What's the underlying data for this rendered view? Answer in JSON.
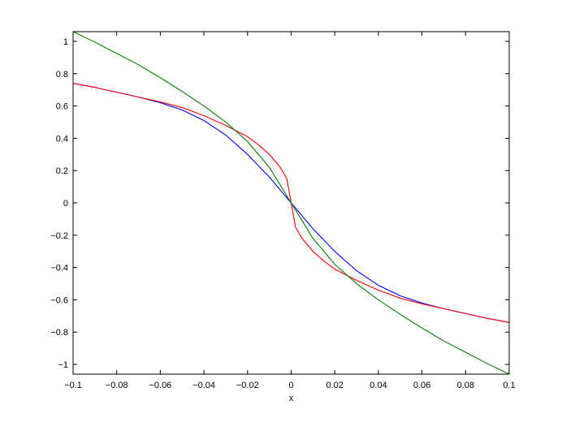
{
  "chart_data": {
    "type": "line",
    "title": "",
    "xlabel": "x",
    "ylabel": "",
    "xlim": [
      -0.1,
      0.1
    ],
    "ylim": [
      -1.06,
      1.06
    ],
    "grid": false,
    "legend": "none",
    "x_ticks": [
      -0.1,
      -0.08,
      -0.06,
      -0.04,
      -0.02,
      0,
      0.02,
      0.04,
      0.06,
      0.08,
      0.1
    ],
    "x_tick_labels": [
      "−0.1",
      "−0.08",
      "−0.06",
      "−0.04",
      "−0.02",
      "0",
      "0.02",
      "0.04",
      "0.06",
      "0.08",
      "0.1"
    ],
    "y_ticks": [
      1,
      0.8,
      0.6,
      0.4,
      0.2,
      0,
      -0.2,
      -0.4,
      -0.6,
      -0.8,
      -1
    ],
    "y_tick_labels": [
      "1",
      "0.8",
      "0.6",
      "0.4",
      "0.2",
      "0",
      "−0.2",
      "−0.4",
      "−0.6",
      "−0.8",
      "−1"
    ],
    "series": [
      {
        "color": "#0000ff",
        "x": [
          -0.1,
          -0.09,
          -0.08,
          -0.07,
          -0.06,
          -0.05,
          -0.04,
          -0.03,
          -0.02,
          -0.015,
          -0.01,
          -0.005,
          0,
          0.005,
          0.01,
          0.015,
          0.02,
          0.03,
          0.04,
          0.05,
          0.06,
          0.07,
          0.08,
          0.09,
          0.1
        ],
        "y": [
          0.74,
          0.715,
          0.685,
          0.655,
          0.62,
          0.575,
          0.51,
          0.42,
          0.3,
          0.23,
          0.16,
          0.08,
          0,
          -0.08,
          -0.16,
          -0.23,
          -0.3,
          -0.42,
          -0.51,
          -0.575,
          -0.62,
          -0.655,
          -0.685,
          -0.715,
          -0.74
        ]
      },
      {
        "color": "#ff0000",
        "x": [
          -0.1,
          -0.09,
          -0.08,
          -0.07,
          -0.06,
          -0.05,
          -0.04,
          -0.03,
          -0.02,
          -0.015,
          -0.01,
          -0.005,
          -0.002,
          0,
          0.002,
          0.005,
          0.01,
          0.015,
          0.02,
          0.03,
          0.04,
          0.05,
          0.06,
          0.07,
          0.08,
          0.09,
          0.1
        ],
        "y": [
          0.74,
          0.715,
          0.685,
          0.655,
          0.625,
          0.59,
          0.54,
          0.48,
          0.41,
          0.36,
          0.3,
          0.22,
          0.15,
          0,
          -0.15,
          -0.22,
          -0.3,
          -0.36,
          -0.41,
          -0.48,
          -0.54,
          -0.59,
          -0.625,
          -0.655,
          -0.685,
          -0.715,
          -0.74
        ]
      },
      {
        "color": "#007f00",
        "x": [
          -0.1,
          -0.09,
          -0.08,
          -0.07,
          -0.06,
          -0.05,
          -0.04,
          -0.03,
          -0.02,
          -0.01,
          0,
          0.01,
          0.02,
          0.03,
          0.04,
          0.05,
          0.06,
          0.07,
          0.08,
          0.09,
          0.1
        ],
        "y": [
          1.06,
          0.995,
          0.925,
          0.855,
          0.775,
          0.69,
          0.6,
          0.5,
          0.38,
          0.22,
          0,
          -0.22,
          -0.38,
          -0.5,
          -0.6,
          -0.69,
          -0.775,
          -0.855,
          -0.925,
          -0.995,
          -1.06
        ]
      }
    ]
  }
}
